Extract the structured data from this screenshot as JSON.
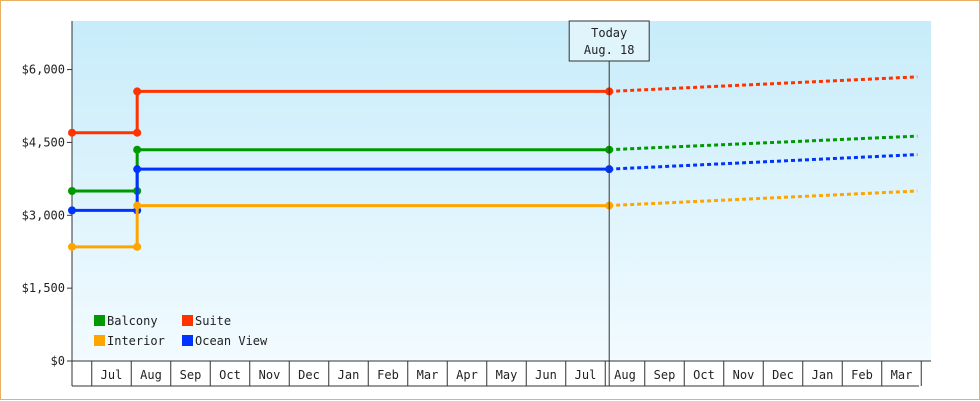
{
  "chart_data": {
    "type": "line",
    "title": "",
    "xlabel": "",
    "ylabel": "",
    "ylim": [
      0,
      7000
    ],
    "yticks": [
      {
        "value": 0,
        "label": "$0"
      },
      {
        "value": 1500,
        "label": "$1,500"
      },
      {
        "value": 3000,
        "label": "$3,000"
      },
      {
        "value": 4500,
        "label": "$4,500"
      },
      {
        "value": 6000,
        "label": "$6,000"
      }
    ],
    "month_labels": [
      "Jul",
      "Aug",
      "Sep",
      "Oct",
      "Nov",
      "Dec",
      "Jan",
      "Feb",
      "Mar",
      "Apr",
      "May",
      "Jun",
      "Jul",
      "Aug",
      "Sep",
      "Oct",
      "Nov",
      "Dec",
      "Jan",
      "Feb",
      "Mar"
    ],
    "today": {
      "line1": "Today",
      "line2": "Aug. 18"
    },
    "series": [
      {
        "name": "Suite",
        "color": "#ff3300",
        "history": [
          [
            0,
            4700
          ],
          [
            1.65,
            4700
          ],
          [
            1.65,
            5550
          ],
          [
            13.6,
            5550
          ]
        ],
        "forecast": [
          [
            13.6,
            5550
          ],
          [
            21.4,
            5850
          ]
        ]
      },
      {
        "name": "Balcony",
        "color": "#009900",
        "history": [
          [
            0,
            3500
          ],
          [
            1.65,
            3500
          ],
          [
            1.65,
            4350
          ],
          [
            13.6,
            4350
          ]
        ],
        "forecast": [
          [
            13.6,
            4350
          ],
          [
            21.4,
            4630
          ]
        ]
      },
      {
        "name": "Ocean View",
        "color": "#0033ff",
        "history": [
          [
            0,
            3100
          ],
          [
            1.65,
            3100
          ],
          [
            1.65,
            3950
          ],
          [
            13.6,
            3950
          ]
        ],
        "forecast": [
          [
            13.6,
            3950
          ],
          [
            21.4,
            4250
          ]
        ]
      },
      {
        "name": "Interior",
        "color": "#ffa500",
        "history": [
          [
            0,
            2350
          ],
          [
            1.65,
            2350
          ],
          [
            1.65,
            3200
          ],
          [
            13.6,
            3200
          ]
        ],
        "forecast": [
          [
            13.6,
            3200
          ],
          [
            21.4,
            3500
          ]
        ]
      }
    ],
    "legend": {
      "placement": "bottom-left",
      "rows": [
        [
          "Balcony",
          "Suite"
        ],
        [
          "Interior",
          "Ocean View"
        ]
      ]
    }
  }
}
